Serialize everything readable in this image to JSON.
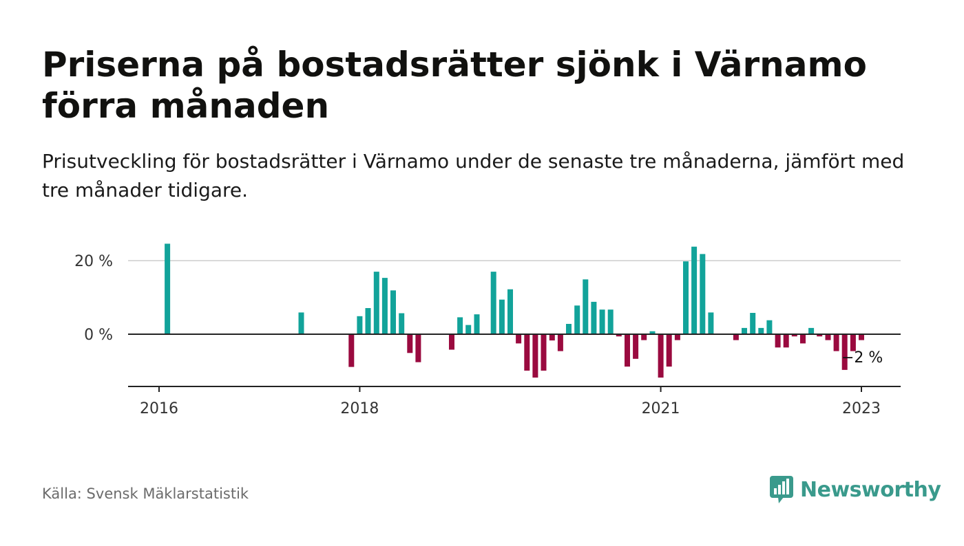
{
  "title": "Priserna på bostadsrätter sjönk i Värnamo förra månaden",
  "subtitle": "Prisutveckling för bostadsrätter i Värnamo under de senaste tre månaderna, jämfört med tre månader tidigare.",
  "source": "Källa: Svensk Mäklarstatistik",
  "brand": "Newsworthy",
  "colors": {
    "positive": "#12a39a",
    "negative": "#9a0a3f",
    "grid": "#d9d9d9",
    "axis": "#222222",
    "brand": "#3a9a8c"
  },
  "chart_data": {
    "type": "bar",
    "title": "",
    "xlabel": "",
    "ylabel": "",
    "ylim": [
      -14,
      27
    ],
    "yticks": [
      {
        "value": 0,
        "label": "0 %"
      },
      {
        "value": 20,
        "label": "20 %"
      }
    ],
    "xticks": [
      {
        "label": "2016",
        "x": 2016.0
      },
      {
        "label": "2018",
        "x": 2018.0
      },
      {
        "label": "2021",
        "x": 2021.0
      },
      {
        "label": "2023",
        "x": 2023.0
      }
    ],
    "x_range": [
      2015.7,
      2023.4
    ],
    "annotation": {
      "label": "−2 %"
    },
    "values": [
      {
        "x": 2016.083,
        "value": 24.6
      },
      {
        "x": 2017.417,
        "value": 5.9
      },
      {
        "x": 2017.917,
        "value": -8.9
      },
      {
        "x": 2018.0,
        "value": 4.9
      },
      {
        "x": 2018.083,
        "value": 7.1
      },
      {
        "x": 2018.167,
        "value": 17.0
      },
      {
        "x": 2018.25,
        "value": 15.3
      },
      {
        "x": 2018.333,
        "value": 11.9
      },
      {
        "x": 2018.417,
        "value": 5.7
      },
      {
        "x": 2018.5,
        "value": -5.1
      },
      {
        "x": 2018.583,
        "value": -7.6
      },
      {
        "x": 2018.917,
        "value": -4.2
      },
      {
        "x": 2019.0,
        "value": 4.6
      },
      {
        "x": 2019.083,
        "value": 2.5
      },
      {
        "x": 2019.167,
        "value": 5.4
      },
      {
        "x": 2019.333,
        "value": 17.0
      },
      {
        "x": 2019.417,
        "value": 9.4
      },
      {
        "x": 2019.5,
        "value": 12.2
      },
      {
        "x": 2019.583,
        "value": -2.5
      },
      {
        "x": 2019.667,
        "value": -9.9
      },
      {
        "x": 2019.75,
        "value": -11.8
      },
      {
        "x": 2019.833,
        "value": -9.9
      },
      {
        "x": 2019.917,
        "value": -1.7
      },
      {
        "x": 2020.0,
        "value": -4.6
      },
      {
        "x": 2020.083,
        "value": 2.8
      },
      {
        "x": 2020.167,
        "value": 7.8
      },
      {
        "x": 2020.25,
        "value": 14.9
      },
      {
        "x": 2020.333,
        "value": 8.8
      },
      {
        "x": 2020.417,
        "value": 6.7
      },
      {
        "x": 2020.5,
        "value": 6.7
      },
      {
        "x": 2020.583,
        "value": -0.6
      },
      {
        "x": 2020.667,
        "value": -8.8
      },
      {
        "x": 2020.75,
        "value": -6.7
      },
      {
        "x": 2020.833,
        "value": -1.6
      },
      {
        "x": 2020.917,
        "value": 0.8
      },
      {
        "x": 2021.0,
        "value": -11.8
      },
      {
        "x": 2021.083,
        "value": -8.8
      },
      {
        "x": 2021.167,
        "value": -1.6
      },
      {
        "x": 2021.25,
        "value": 19.8
      },
      {
        "x": 2021.333,
        "value": 23.8
      },
      {
        "x": 2021.417,
        "value": 21.8
      },
      {
        "x": 2021.5,
        "value": 5.9
      },
      {
        "x": 2021.75,
        "value": -1.6
      },
      {
        "x": 2021.833,
        "value": 1.7
      },
      {
        "x": 2021.917,
        "value": 5.8
      },
      {
        "x": 2022.0,
        "value": 1.7
      },
      {
        "x": 2022.083,
        "value": 3.8
      },
      {
        "x": 2022.167,
        "value": -3.6
      },
      {
        "x": 2022.25,
        "value": -3.6
      },
      {
        "x": 2022.333,
        "value": -0.6
      },
      {
        "x": 2022.417,
        "value": -2.5
      },
      {
        "x": 2022.5,
        "value": 1.7
      },
      {
        "x": 2022.583,
        "value": -0.6
      },
      {
        "x": 2022.667,
        "value": -1.6
      },
      {
        "x": 2022.75,
        "value": -4.6
      },
      {
        "x": 2022.833,
        "value": -9.7
      },
      {
        "x": 2022.917,
        "value": -4.6
      },
      {
        "x": 2023.0,
        "value": -1.6
      }
    ]
  }
}
